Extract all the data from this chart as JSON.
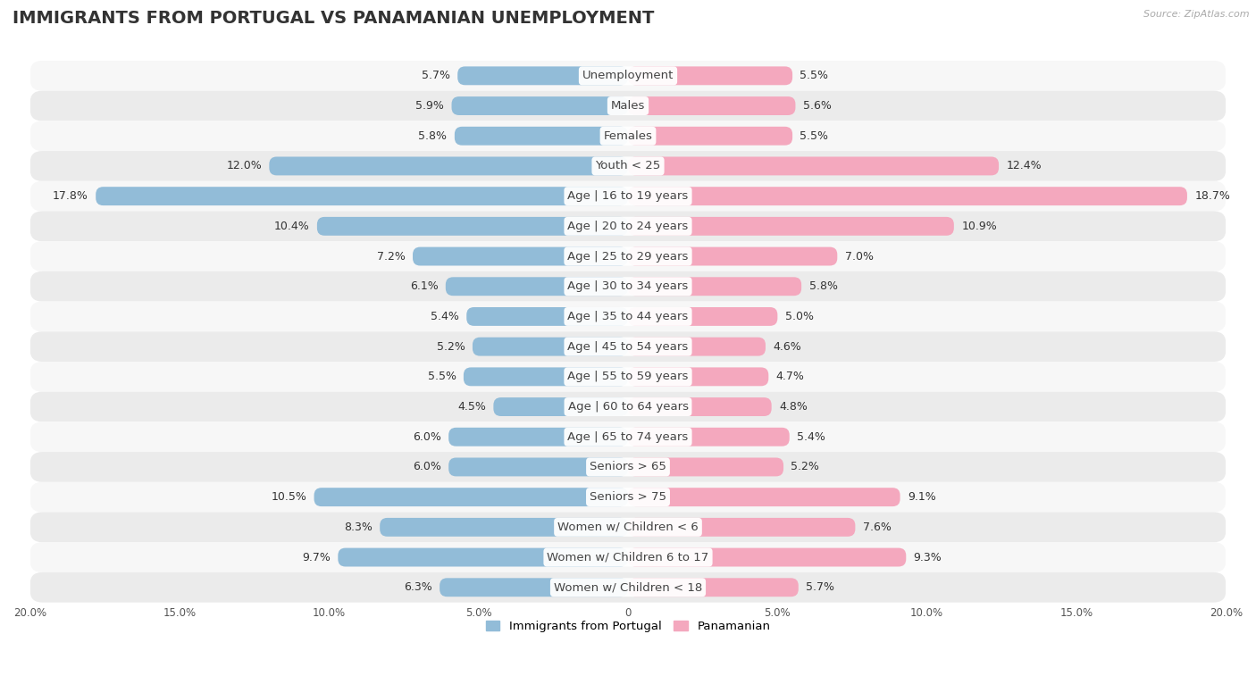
{
  "title": "IMMIGRANTS FROM PORTUGAL VS PANAMANIAN UNEMPLOYMENT",
  "source": "Source: ZipAtlas.com",
  "categories": [
    "Unemployment",
    "Males",
    "Females",
    "Youth < 25",
    "Age | 16 to 19 years",
    "Age | 20 to 24 years",
    "Age | 25 to 29 years",
    "Age | 30 to 34 years",
    "Age | 35 to 44 years",
    "Age | 45 to 54 years",
    "Age | 55 to 59 years",
    "Age | 60 to 64 years",
    "Age | 65 to 74 years",
    "Seniors > 65",
    "Seniors > 75",
    "Women w/ Children < 6",
    "Women w/ Children 6 to 17",
    "Women w/ Children < 18"
  ],
  "left_values": [
    5.7,
    5.9,
    5.8,
    12.0,
    17.8,
    10.4,
    7.2,
    6.1,
    5.4,
    5.2,
    5.5,
    4.5,
    6.0,
    6.0,
    10.5,
    8.3,
    9.7,
    6.3
  ],
  "right_values": [
    5.5,
    5.6,
    5.5,
    12.4,
    18.7,
    10.9,
    7.0,
    5.8,
    5.0,
    4.6,
    4.7,
    4.8,
    5.4,
    5.2,
    9.1,
    7.6,
    9.3,
    5.7
  ],
  "left_color": "#92bcd8",
  "right_color": "#f4a8be",
  "left_label": "Immigrants from Portugal",
  "right_label": "Panamanian",
  "xlim": 20.0,
  "bg_stripe_light": "#f7f7f7",
  "bg_stripe_dark": "#ebebeb",
  "fig_bg": "#ffffff",
  "title_fontsize": 14,
  "label_fontsize": 9.5,
  "value_fontsize": 9
}
